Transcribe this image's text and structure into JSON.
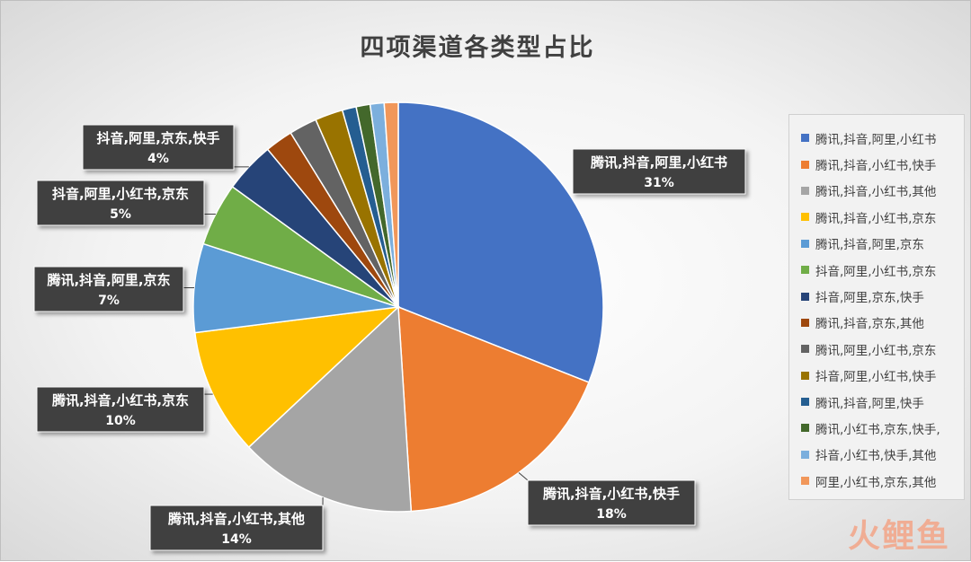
{
  "chart_data": {
    "type": "pie",
    "title": "四项渠道各类型占比",
    "slices": [
      {
        "name": "腾讯,抖音,阿里,小红书",
        "value": 31,
        "data_label": "31%",
        "color": "#4472c4"
      },
      {
        "name": "腾讯,抖音,小红书,快手",
        "value": 18,
        "data_label": "18%",
        "color": "#ed7d31"
      },
      {
        "name": "腾讯,抖音,小红书,其他",
        "value": 14,
        "data_label": "14%",
        "color": "#a5a5a5"
      },
      {
        "name": "腾讯,抖音,小红书,京东",
        "value": 10,
        "data_label": "10%",
        "color": "#ffc000"
      },
      {
        "name": "腾讯,抖音,阿里,京东",
        "value": 7,
        "data_label": "7%",
        "color": "#5b9bd5"
      },
      {
        "name": "抖音,阿里,小红书,京东",
        "value": 5,
        "data_label": "5%",
        "color": "#70ad47"
      },
      {
        "name": "抖音,阿里,京东,快手",
        "value": 4,
        "data_label": "4%",
        "color": "#264478"
      },
      {
        "name": "腾讯,抖音,京东,其他",
        "value": 2.2,
        "color": "#9e480e"
      },
      {
        "name": "腾讯,阿里,小红书,京东",
        "value": 2.2,
        "color": "#636363"
      },
      {
        "name": "抖音,阿里,小红书,快手",
        "value": 2.2,
        "color": "#997300"
      },
      {
        "name": "腾讯,抖音,阿里,快手",
        "value": 1.1,
        "color": "#255e91"
      },
      {
        "name": "腾讯,小红书,京东,快手,",
        "value": 1.1,
        "color": "#43682b"
      },
      {
        "name": "抖音,小红书,快手,其他",
        "value": 1.1,
        "color": "#7cafdd"
      },
      {
        "name": "阿里,小红书,京东,其他",
        "value": 1.1,
        "color": "#f1975a"
      }
    ],
    "legend_position": "right"
  },
  "watermark": "火鲤鱼"
}
